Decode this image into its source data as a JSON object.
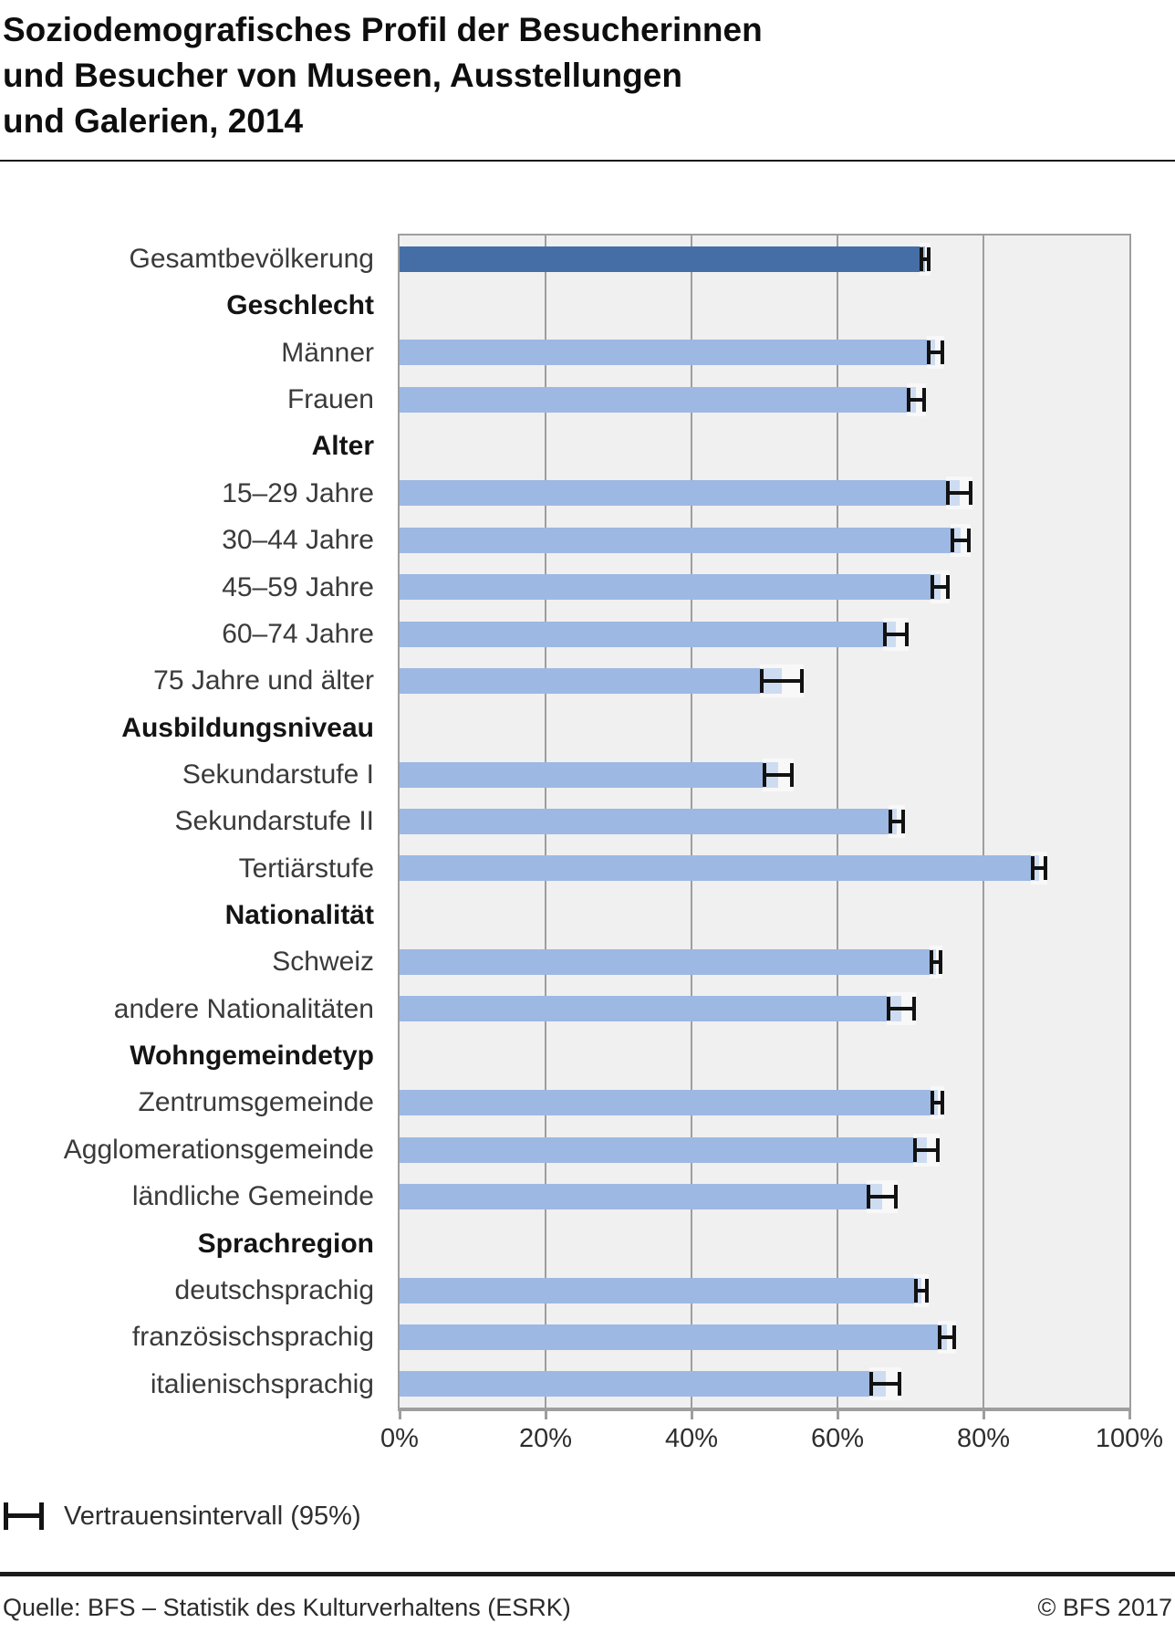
{
  "title": {
    "lines": [
      "Soziodemografisches Profil der Besucherinnen",
      "und Besucher von Museen, Ausstellungen",
      "und Galerien, 2014"
    ]
  },
  "legend": {
    "symbol": "error-bar-icon",
    "label": "Vertrauensintervall (95%)"
  },
  "footer": {
    "source": "Quelle: BFS – Statistik des Kulturverhaltens (ESRK)",
    "copyright": "© BFS 2017"
  },
  "colors": {
    "bar_light": "#9DB8E2",
    "bar_dark": "#456EA6",
    "plot_background": "#F0F0F0",
    "gridline": "#9E9E9E",
    "error_bar": "#121212"
  },
  "chart_data": {
    "type": "bar",
    "orientation": "horizontal",
    "unit": "%",
    "xlim": [
      0,
      100
    ],
    "grid": true,
    "tick_values": [
      0,
      20,
      40,
      60,
      80,
      100
    ],
    "tick_labels": [
      "0%",
      "20%",
      "40%",
      "60%",
      "80%",
      "100%"
    ],
    "ci_level": "95%",
    "rows": [
      {
        "label": "Gesamtbevölkerung",
        "kind": "bar",
        "emphasis": true,
        "value": 72.0,
        "ci": [
          71.2,
          72.8
        ]
      },
      {
        "label": "Geschlecht",
        "kind": "header"
      },
      {
        "label": "Männer",
        "kind": "bar",
        "value": 73.4,
        "ci": [
          72.3,
          74.6
        ]
      },
      {
        "label": "Frauen",
        "kind": "bar",
        "value": 70.8,
        "ci": [
          69.5,
          72.1
        ]
      },
      {
        "label": "Alter",
        "kind": "header"
      },
      {
        "label": "15–29 Jahre",
        "kind": "bar",
        "value": 76.7,
        "ci": [
          74.9,
          78.5
        ]
      },
      {
        "label": "30–44 Jahre",
        "kind": "bar",
        "value": 76.9,
        "ci": [
          75.5,
          78.3
        ]
      },
      {
        "label": "45–59 Jahre",
        "kind": "bar",
        "value": 74.1,
        "ci": [
          72.8,
          75.4
        ]
      },
      {
        "label": "60–74 Jahre",
        "kind": "bar",
        "value": 68.0,
        "ci": [
          66.2,
          69.8
        ]
      },
      {
        "label": "75 Jahre und älter",
        "kind": "bar",
        "value": 52.4,
        "ci": [
          49.4,
          55.4
        ]
      },
      {
        "label": "Ausbildungsniveau",
        "kind": "header"
      },
      {
        "label": "Sekundarstufe I",
        "kind": "bar",
        "value": 51.9,
        "ci": [
          49.8,
          54.0
        ]
      },
      {
        "label": "Sekundarstufe II",
        "kind": "bar",
        "value": 68.1,
        "ci": [
          67.0,
          69.2
        ]
      },
      {
        "label": "Tertiärstufe",
        "kind": "bar",
        "value": 87.6,
        "ci": [
          86.5,
          88.7
        ]
      },
      {
        "label": "Nationalität",
        "kind": "header"
      },
      {
        "label": "Schweiz",
        "kind": "bar",
        "value": 73.5,
        "ci": [
          72.6,
          74.4
        ]
      },
      {
        "label": "andere Nationalitäten",
        "kind": "bar",
        "value": 68.7,
        "ci": [
          66.7,
          70.7
        ]
      },
      {
        "label": "Wohngemeindetyp",
        "kind": "header"
      },
      {
        "label": "Zentrumsgemeinde",
        "kind": "bar",
        "value": 73.7,
        "ci": [
          72.8,
          74.6
        ]
      },
      {
        "label": "Agglomerationsgemeinde",
        "kind": "bar",
        "value": 72.2,
        "ci": [
          70.4,
          74.0
        ]
      },
      {
        "label": "ländliche Gemeinde",
        "kind": "bar",
        "value": 66.1,
        "ci": [
          64.0,
          68.2
        ]
      },
      {
        "label": "Sprachregion",
        "kind": "header"
      },
      {
        "label": "deutschsprachig",
        "kind": "bar",
        "value": 71.5,
        "ci": [
          70.5,
          72.5
        ]
      },
      {
        "label": "französischsprachig",
        "kind": "bar",
        "value": 75.0,
        "ci": [
          73.7,
          76.3
        ]
      },
      {
        "label": "italienischsprachig",
        "kind": "bar",
        "value": 66.6,
        "ci": [
          64.4,
          68.8
        ]
      }
    ]
  }
}
